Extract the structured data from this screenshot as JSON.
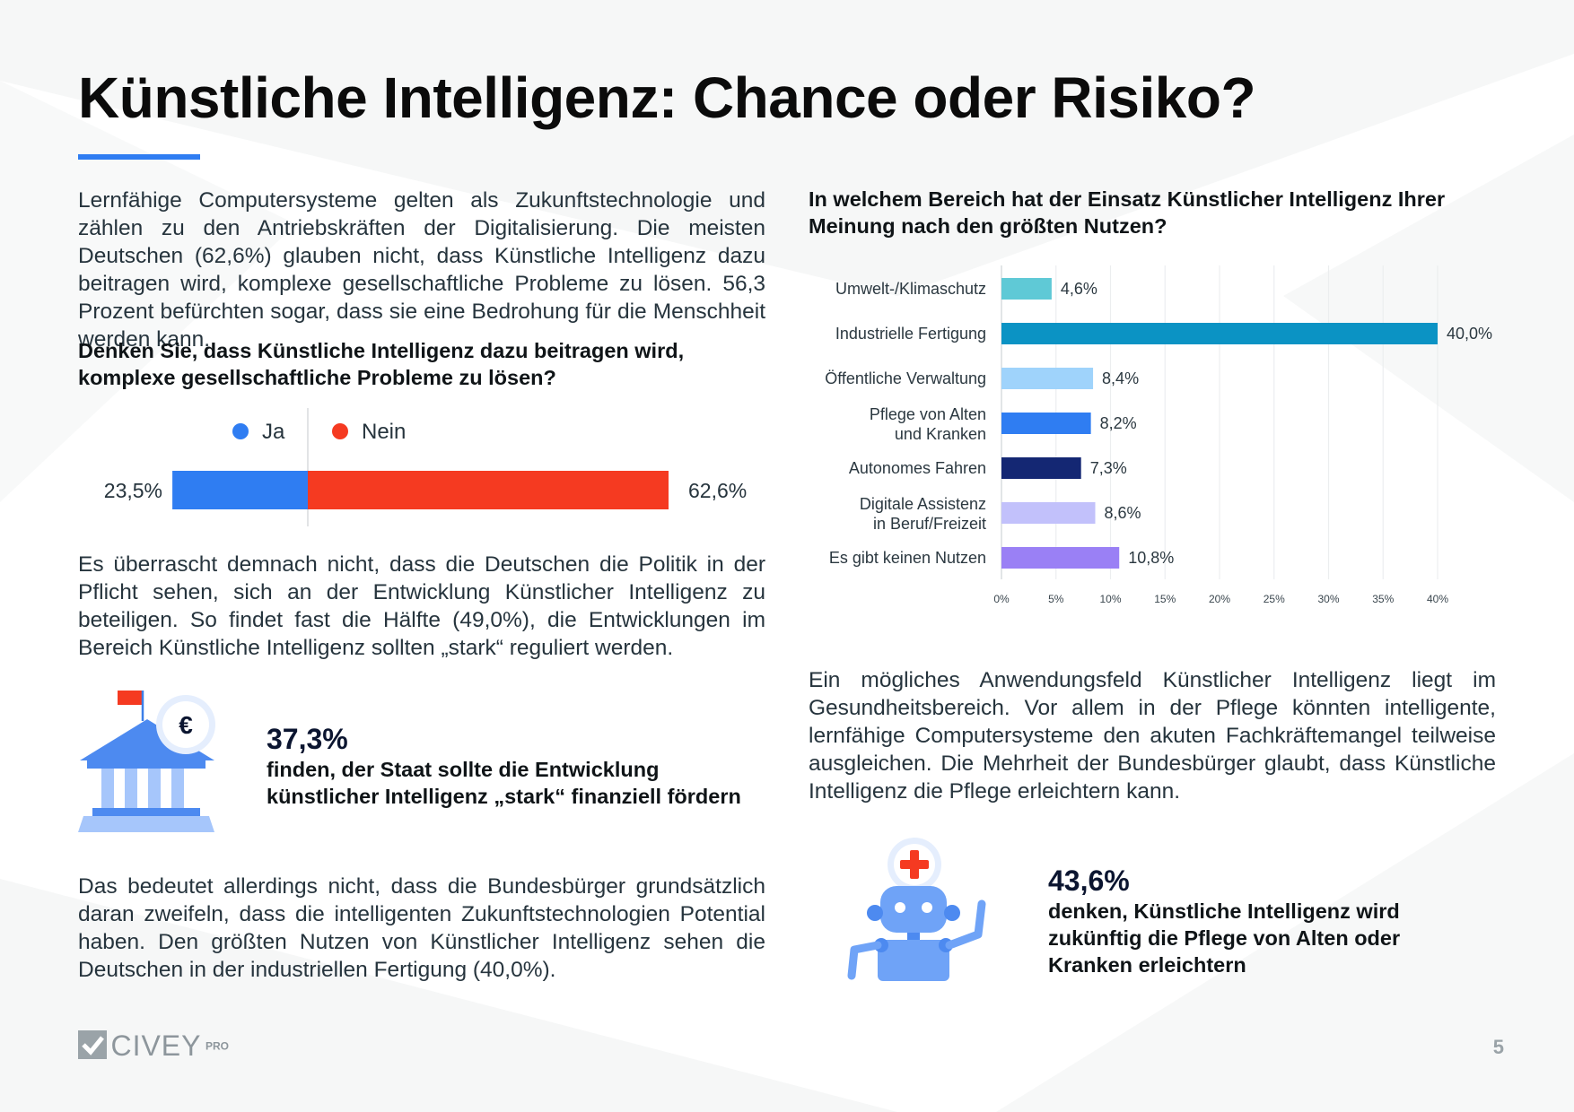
{
  "title": "Künstliche Intelligenz: Chance oder Risiko?",
  "colors": {
    "accent": "#2f7df2",
    "ja": "#2f7df2",
    "nein": "#f53a21"
  },
  "intro_paragraph": "Lernfähige Computersysteme gelten als Zukunftstechnologie und zählen zu den Antriebskräften der Digitalisierung. Die meisten Deutschen (62,6%) glauben nicht, dass Künstliche Intelligenz dazu beitragen wird, komplexe gesellschaftliche Probleme zu lösen. 56,3 Prozent befürchten sogar, dass sie eine Bedrohung für die Menschheit werden kann.",
  "question_1": "Denken Sie, dass Künstliche Intelligenz dazu beitragen wird, komplexe gesellschaftliche Probleme zu lösen?",
  "paragraph_2": "Es überrascht demnach nicht, dass die Deutschen die Politik in der Pflicht sehen, sich an der Entwicklung Künstlicher Intelligenz zu beteiligen. So findet fast die Hälfte (49,0%), die Entwicklungen im Bereich Künstliche Intelligenz sollten „stark“ reguliert werden.",
  "stat_1": {
    "value": "37,3%",
    "text": "finden, der Staat sollte die Entwicklung künstlicher Intelligenz „stark“ finanziell fördern",
    "icon": "government-building-euro-icon"
  },
  "paragraph_3": "Das bedeutet allerdings nicht, dass die Bundesbürger grundsätzlich daran zweifeln, dass die intelligenten Zukunftstechnologien Potential haben. Den größten Nutzen von Künstlicher Intelligenz sehen die Deutschen in der industriellen Fertigung (40,0%).",
  "chart_2_question": "In welchem Bereich hat der Einsatz Künstlicher Intelligenz Ihrer Meinung nach den größten Nutzen?",
  "paragraph_4": "Ein mögliches Anwendungsfeld Künstlicher Intelligenz liegt im Gesundheitsbereich. Vor allem in der Pflege könnten intelligente, lernfähige Computersysteme den akuten Fachkräftemangel teilweise ausgleichen. Die Mehrheit der Bundesbürger glaubt, dass Künstliche Intelligenz die Pflege erleichtern kann.",
  "stat_2": {
    "value": "43,6%",
    "text": "denken, Künstliche Intelligenz wird zukünftig die Pflege von Alten oder Kranken erleichtern",
    "icon": "care-robot-icon"
  },
  "logo": {
    "word": "CIVEY",
    "suffix": "PRO"
  },
  "page_number": "5",
  "chart_data": [
    {
      "type": "bar",
      "orientation": "horizontal-stacked",
      "legend_position": "top",
      "series": [
        {
          "name": "Ja",
          "value": 23.5,
          "label": "23,5%",
          "color": "#2f7df2"
        },
        {
          "name": "Nein",
          "value": 62.6,
          "label": "62,6%",
          "color": "#f53a21"
        }
      ]
    },
    {
      "type": "bar",
      "orientation": "horizontal",
      "grid": true,
      "xlim": [
        0,
        40
      ],
      "x_ticks": [
        "0%",
        "5%",
        "10%",
        "15%",
        "20%",
        "25%",
        "30%",
        "35%",
        "40%"
      ],
      "categories": [
        "Umwelt-/Klimaschutz",
        "Industrielle Fertigung",
        "Öffentliche Verwaltung",
        "Pflege von Alten\nund Kranken",
        "Autonomes Fahren",
        "Digitale Assistenz\nin Beruf/Freizeit",
        "Es gibt keinen Nutzen"
      ],
      "values": [
        4.6,
        40.0,
        8.4,
        8.2,
        7.3,
        8.6,
        10.8
      ],
      "value_labels": [
        "4,6%",
        "40,0%",
        "8,4%",
        "8,2%",
        "7,3%",
        "8,6%",
        "10,8%"
      ],
      "colors": [
        "#5fc9d6",
        "#0b93c4",
        "#9fd3fb",
        "#2f7df2",
        "#142773",
        "#c2c1fb",
        "#9a80f5"
      ]
    }
  ]
}
